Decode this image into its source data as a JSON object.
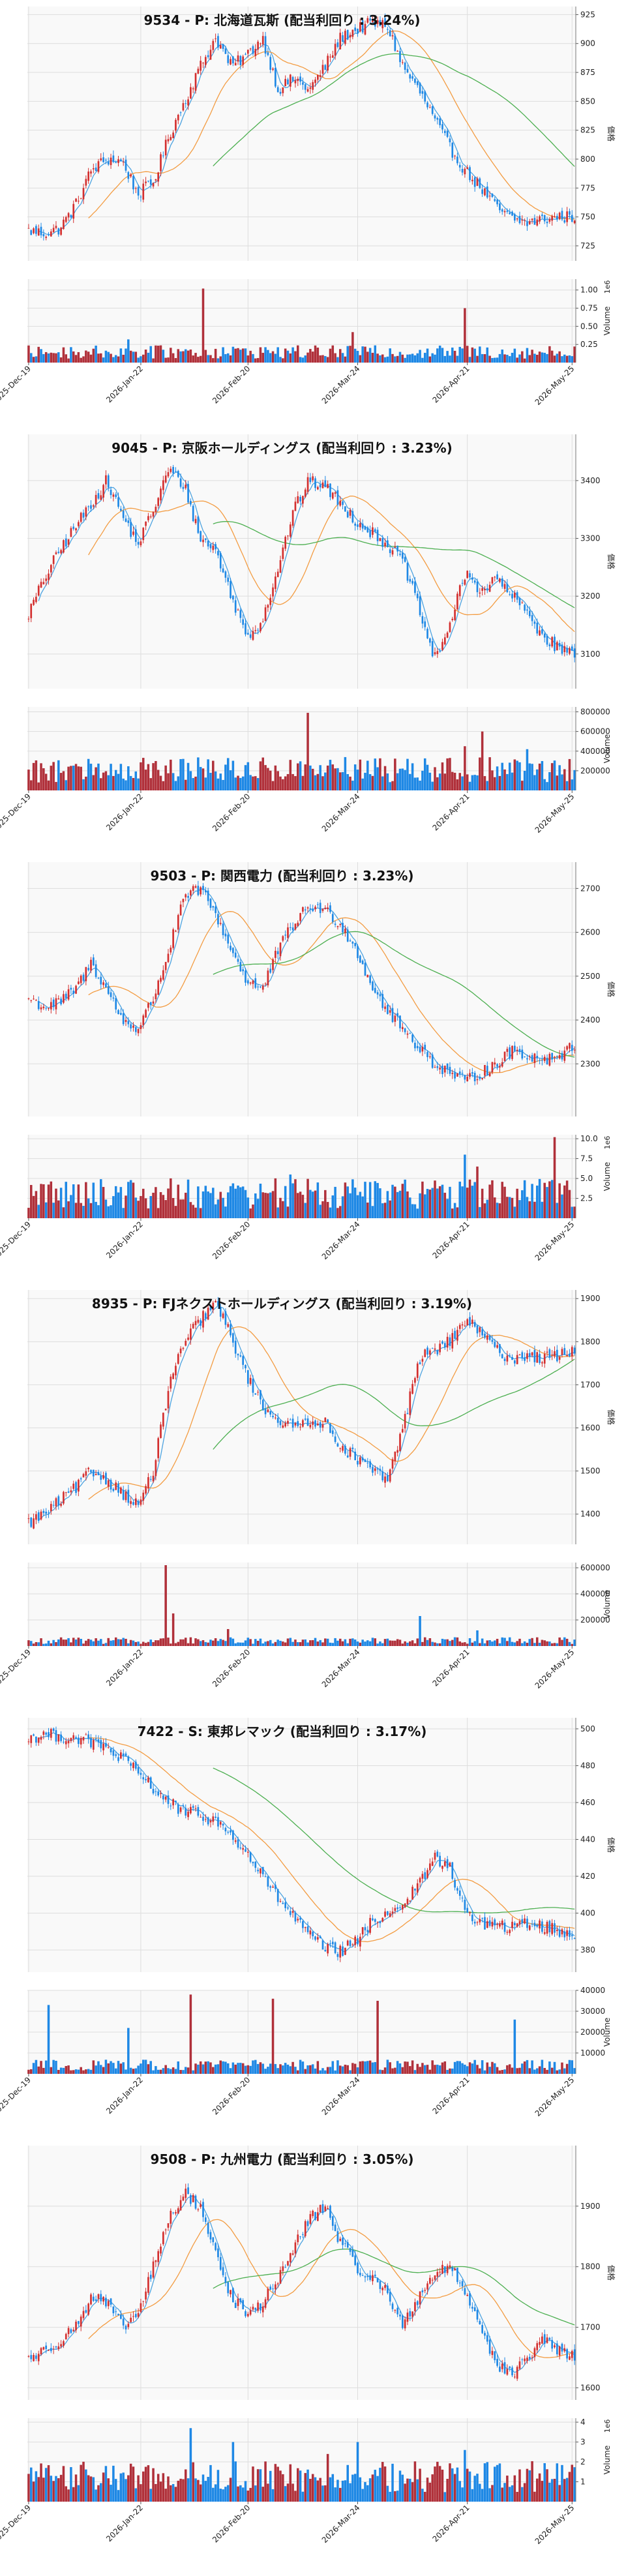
{
  "chart_data": [
    {
      "type": "candlestick",
      "title": "9534 - P: 北海道瓦斯 (配当利回り : 3.24%)",
      "ylabel": "価格",
      "volume_label": "Volume",
      "volume_exponent": "1e6",
      "ylim": [
        712,
        932
      ],
      "yticks": [
        725,
        750,
        775,
        800,
        825,
        850,
        875,
        900,
        925
      ],
      "vol_ylim": [
        0,
        1.15
      ],
      "vol_ticks": [
        0.25,
        0.5,
        0.75,
        1.0
      ],
      "vol_tick_labels": [
        "0.25",
        "0.50",
        "0.75",
        "1.00"
      ],
      "price_path": [
        738,
        736,
        740,
        760,
        790,
        800,
        798,
        770,
        780,
        820,
        850,
        880,
        905,
        880,
        890,
        905,
        860,
        870,
        860,
        880,
        905,
        912,
        918,
        915,
        880,
        860,
        835,
        810,
        790,
        775,
        758,
        748,
        745,
        748,
        750,
        750
      ],
      "vol_level": 0.14,
      "vol_spikes": [
        [
          70,
          1.02
        ],
        [
          175,
          0.75
        ],
        [
          40,
          0.32
        ],
        [
          130,
          0.42
        ]
      ]
    },
    {
      "type": "candlestick",
      "title": "9045 - P: 京阪ホールディングス (配当利回り : 3.23%)",
      "ylabel": "価格",
      "volume_label": "Volume",
      "volume_exponent": "",
      "ylim": [
        3040,
        3480
      ],
      "yticks": [
        3100,
        3200,
        3300,
        3400
      ],
      "vol_ylim": [
        0,
        850000
      ],
      "vol_ticks": [
        200000,
        400000,
        600000,
        800000
      ],
      "vol_tick_labels": [
        "200000",
        "400000",
        "600000",
        "800000"
      ],
      "price_path": [
        3170,
        3230,
        3280,
        3320,
        3360,
        3400,
        3340,
        3290,
        3350,
        3420,
        3390,
        3300,
        3280,
        3200,
        3130,
        3160,
        3250,
        3350,
        3400,
        3390,
        3360,
        3330,
        3310,
        3290,
        3260,
        3180,
        3090,
        3150,
        3240,
        3210,
        3230,
        3200,
        3170,
        3130,
        3110,
        3100
      ],
      "vol_level": 200000,
      "vol_spikes": [
        [
          112,
          790000
        ],
        [
          182,
          600000
        ],
        [
          175,
          450000
        ],
        [
          200,
          420000
        ]
      ]
    },
    {
      "type": "candlestick",
      "title": "9503 - P: 関西電力 (配当利回り : 3.23%)",
      "ylabel": "価格",
      "volume_label": "Volume",
      "volume_exponent": "1e6",
      "ylim": [
        2180,
        2760
      ],
      "yticks": [
        2300,
        2400,
        2500,
        2600,
        2700
      ],
      "vol_ylim": [
        0,
        10.5
      ],
      "vol_ticks": [
        2.5,
        5.0,
        7.5,
        10.0
      ],
      "vol_tick_labels": [
        "2.5",
        "5.0",
        "7.5",
        "10.0"
      ],
      "price_path": [
        2450,
        2430,
        2440,
        2470,
        2530,
        2470,
        2400,
        2380,
        2450,
        2560,
        2680,
        2700,
        2640,
        2560,
        2490,
        2470,
        2560,
        2620,
        2660,
        2650,
        2620,
        2560,
        2480,
        2420,
        2380,
        2340,
        2300,
        2280,
        2260,
        2280,
        2300,
        2330,
        2320,
        2310,
        2320,
        2340
      ],
      "vol_level": 3.0,
      "vol_spikes": [
        [
          211,
          10.2
        ],
        [
          175,
          8.0
        ],
        [
          180,
          6.5
        ],
        [
          68,
          4.0
        ],
        [
          105,
          5.5
        ]
      ]
    },
    {
      "type": "candlestick",
      "title": "8935 - P: FJネクストホールディングス (配当利回り : 3.19%)",
      "ylabel": "価格",
      "volume_label": "Volume",
      "volume_exponent": "",
      "ylim": [
        1330,
        1920
      ],
      "yticks": [
        1400,
        1500,
        1600,
        1700,
        1800,
        1900
      ],
      "vol_ylim": [
        0,
        640000
      ],
      "vol_ticks": [
        200000,
        400000,
        600000
      ],
      "vol_tick_labels": [
        "200000",
        "400000",
        "600000"
      ],
      "price_path": [
        1380,
        1400,
        1430,
        1460,
        1500,
        1480,
        1450,
        1420,
        1500,
        1700,
        1800,
        1850,
        1890,
        1810,
        1720,
        1650,
        1620,
        1600,
        1620,
        1610,
        1560,
        1530,
        1500,
        1480,
        1600,
        1760,
        1780,
        1800,
        1850,
        1820,
        1780,
        1760,
        1770,
        1760,
        1770,
        1780
      ],
      "vol_level": 40000,
      "vol_spikes": [
        [
          55,
          620000
        ],
        [
          58,
          250000
        ],
        [
          157,
          230000
        ],
        [
          80,
          130000
        ],
        [
          180,
          120000
        ]
      ]
    },
    {
      "type": "candlestick",
      "title": "7422 - S: 東邦レマック (配当利回り : 3.17%)",
      "ylabel": "価格",
      "volume_label": "Volume",
      "volume_exponent": "",
      "ylim": [
        368,
        506
      ],
      "yticks": [
        380,
        400,
        420,
        440,
        460,
        480,
        500
      ],
      "vol_ylim": [
        0,
        40000
      ],
      "vol_ticks": [
        10000,
        20000,
        30000,
        40000
      ],
      "vol_tick_labels": [
        "10000",
        "20000",
        "30000",
        "40000"
      ],
      "price_path": [
        495,
        497,
        496,
        495,
        493,
        489,
        484,
        476,
        468,
        460,
        455,
        453,
        450,
        442,
        432,
        420,
        408,
        398,
        388,
        381,
        379,
        385,
        395,
        400,
        405,
        415,
        430,
        425,
        400,
        395,
        393,
        392,
        395,
        393,
        390,
        388
      ],
      "vol_level": 4000,
      "vol_spikes": [
        [
          8,
          33000
        ],
        [
          65,
          38000
        ],
        [
          98,
          36000
        ],
        [
          140,
          35000
        ],
        [
          40,
          22000
        ],
        [
          195,
          26000
        ]
      ]
    },
    {
      "type": "candlestick",
      "title": "9508 - P: 九州電力 (配当利回り : 3.05%)",
      "ylabel": "価格",
      "volume_label": "Volume",
      "volume_exponent": "1e6",
      "ylim": [
        1580,
        2000
      ],
      "yticks": [
        1600,
        1700,
        1800,
        1900
      ],
      "vol_ylim": [
        0,
        4.2
      ],
      "vol_ticks": [
        1,
        2,
        3,
        4
      ],
      "vol_tick_labels": [
        "1",
        "2",
        "3",
        "4"
      ],
      "price_path": [
        1650,
        1660,
        1680,
        1700,
        1750,
        1740,
        1700,
        1720,
        1800,
        1880,
        1920,
        1900,
        1820,
        1750,
        1720,
        1740,
        1780,
        1830,
        1880,
        1900,
        1840,
        1800,
        1780,
        1760,
        1700,
        1750,
        1790,
        1800,
        1760,
        1700,
        1640,
        1620,
        1650,
        1680,
        1660,
        1650
      ],
      "vol_level": 1.2,
      "vol_spikes": [
        [
          65,
          3.7
        ],
        [
          82,
          3.0
        ],
        [
          132,
          3.0
        ],
        [
          175,
          2.6
        ],
        [
          120,
          2.4
        ]
      ]
    }
  ],
  "x_tick_labels": [
    "2025-Dec-19",
    "2026-Jan-22",
    "2026-Feb-20",
    "2026-Mar-24",
    "2026-Apr-21",
    "2026-May-25"
  ],
  "colors": {
    "up": "#d32f2f",
    "down": "#1e88e5",
    "up_vol": "#b0303a",
    "down_vol": "#1e88e5",
    "ma_short": "#4da3e0",
    "ma_mid": "#f39c42",
    "ma_long": "#4caf50",
    "grid": "#dddddd",
    "bg": "#f9f9f9"
  }
}
